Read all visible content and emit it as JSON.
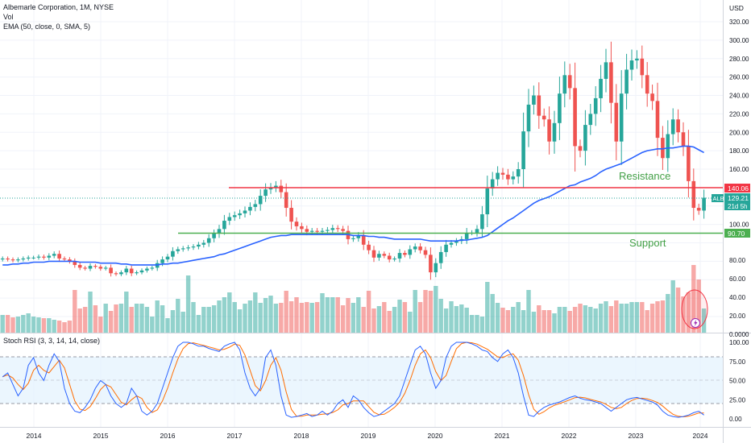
{
  "header": {
    "title": "Albemarle Corporation, 1M, NYSE",
    "vol_label": "Vol",
    "ema_label": "EMA (50, close, 0, SMA, 5)",
    "currency": "USD"
  },
  "price_axis": {
    "ticks": [
      "320.00",
      "300.00",
      "280.00",
      "260.00",
      "240.00",
      "220.00",
      "200.00",
      "180.00",
      "160.00",
      "140.00",
      "120.00",
      "100.00",
      "80.00",
      "60.00",
      "40.00",
      "20.00",
      "0.0000"
    ]
  },
  "badges": {
    "resistance_price": "140.06",
    "symbol": "ALB",
    "last_price": "129.21",
    "countdown": "21d 5h",
    "support_price": "90.70"
  },
  "annotations": {
    "resistance": "Resistance",
    "support": "Support"
  },
  "stoch": {
    "label": "Stoch RSI (3, 3, 14, 14, close)",
    "ticks": [
      "100.00",
      "75.00",
      "50.00",
      "25.00",
      "0.00"
    ]
  },
  "time_axis": {
    "ticks": [
      "2014",
      "2015",
      "2016",
      "2017",
      "2018",
      "2019",
      "2020",
      "2021",
      "2022",
      "2023",
      "2024"
    ]
  },
  "colors": {
    "up": "#26a69a",
    "down": "#ef5350",
    "ema": "#2962ff",
    "resistance_line": "#f23645",
    "support_line": "#4caf50",
    "stoch_k": "#2962ff",
    "stoch_d": "#ff6d00",
    "stoch_band": "#e3f2fd"
  },
  "chart_data": {
    "type": "candlestick",
    "interval": "1M",
    "y_range": [
      0,
      330
    ],
    "resistance_level": 140.06,
    "support_level": 90.7,
    "candles_close": [
      63,
      62,
      61,
      62,
      63,
      64,
      64,
      65,
      64,
      66,
      68,
      63,
      62,
      60,
      56,
      53,
      52,
      55,
      54,
      52,
      53,
      47,
      46,
      48,
      52,
      47,
      48,
      50,
      52,
      53,
      58,
      62,
      65,
      71,
      73,
      74,
      75,
      76,
      78,
      80,
      85,
      90,
      95,
      104,
      108,
      110,
      112,
      115,
      119,
      122,
      131,
      138,
      140,
      142,
      135,
      118,
      103,
      98,
      95,
      92,
      93,
      92,
      93,
      94,
      96,
      95,
      93,
      84,
      85,
      88,
      78,
      72,
      64,
      68,
      66,
      62,
      63,
      69,
      67,
      73,
      76,
      72,
      67,
      48,
      58,
      70,
      78,
      80,
      82,
      84,
      91,
      91,
      95,
      111,
      139,
      149,
      156,
      154,
      149,
      152,
      160,
      201,
      230,
      240,
      218,
      214,
      190,
      210,
      242,
      262,
      248,
      185,
      180,
      208,
      220,
      237,
      258,
      276,
      232,
      190,
      242,
      268,
      278,
      280,
      262,
      242,
      234,
      194,
      172,
      198,
      214,
      200,
      185,
      147,
      118,
      115,
      129
    ],
    "ema_50": [
      56,
      56,
      57,
      57,
      58,
      58,
      59,
      59,
      59,
      60,
      60,
      60,
      60,
      60,
      60,
      59,
      59,
      59,
      59,
      58,
      58,
      58,
      58,
      57,
      57,
      56,
      56,
      56,
      56,
      56,
      56,
      57,
      57,
      58,
      58,
      59,
      60,
      61,
      62,
      63,
      64,
      65,
      67,
      68,
      70,
      72,
      74,
      76,
      78,
      80,
      82,
      84,
      86,
      87,
      88,
      88,
      89,
      89,
      89,
      89,
      89,
      89,
      89,
      89,
      89,
      89,
      89,
      89,
      88,
      88,
      88,
      87,
      87,
      86,
      86,
      85,
      84,
      84,
      84,
      84,
      84,
      84,
      83,
      82,
      82,
      82,
      82,
      82,
      82,
      83,
      83,
      84,
      85,
      86,
      88,
      92,
      96,
      100,
      104,
      107,
      111,
      115,
      119,
      123,
      126,
      128,
      130,
      133,
      136,
      139,
      142,
      143,
      146,
      148,
      150,
      153,
      157,
      160,
      162,
      164,
      166,
      169,
      172,
      175,
      178,
      180,
      181,
      182,
      182,
      183,
      183,
      184,
      185,
      185,
      184,
      181,
      178
    ],
    "volume": [
      22,
      22,
      19,
      20,
      22,
      24,
      20,
      19,
      18,
      18,
      16,
      15,
      13,
      15,
      53,
      30,
      32,
      51,
      34,
      20,
      36,
      27,
      35,
      36,
      51,
      32,
      36,
      36,
      32,
      20,
      40,
      34,
      18,
      28,
      42,
      26,
      71,
      38,
      22,
      32,
      32,
      34,
      40,
      44,
      50,
      38,
      29,
      36,
      40,
      50,
      37,
      43,
      46,
      36,
      37,
      52,
      39,
      44,
      37,
      38,
      37,
      38,
      49,
      44,
      44,
      44,
      34,
      43,
      37,
      44,
      32,
      52,
      30,
      33,
      38,
      27,
      32,
      41,
      38,
      26,
      53,
      38,
      53,
      52,
      58,
      42,
      30,
      39,
      33,
      35,
      31,
      22,
      22,
      20,
      63,
      48,
      37,
      31,
      28,
      32,
      38,
      28,
      53,
      26,
      34,
      28,
      28,
      24,
      32,
      32,
      27,
      32,
      36,
      34,
      32,
      30,
      36,
      39,
      33,
      40,
      36,
      36,
      38,
      38,
      38,
      28,
      36,
      39,
      40,
      48,
      65,
      56,
      45,
      50,
      84,
      66,
      30
    ],
    "stoch_k": [
      55,
      60,
      45,
      30,
      40,
      70,
      80,
      60,
      50,
      70,
      85,
      75,
      40,
      20,
      10,
      8,
      15,
      25,
      40,
      50,
      45,
      30,
      20,
      15,
      20,
      40,
      30,
      10,
      5,
      10,
      20,
      40,
      60,
      80,
      95,
      100,
      100,
      98,
      95,
      95,
      92,
      90,
      88,
      95,
      98,
      100,
      90,
      60,
      40,
      30,
      40,
      80,
      90,
      70,
      30,
      5,
      2,
      3,
      5,
      7,
      3,
      5,
      10,
      5,
      10,
      20,
      25,
      15,
      30,
      25,
      15,
      8,
      3,
      5,
      10,
      15,
      20,
      30,
      50,
      70,
      90,
      95,
      85,
      60,
      40,
      50,
      80,
      95,
      100,
      100,
      100,
      98,
      95,
      90,
      88,
      80,
      75,
      85,
      90,
      80,
      60,
      30,
      5,
      3,
      10,
      15,
      18,
      20,
      22,
      25,
      28,
      30,
      27,
      25,
      24,
      22,
      20,
      15,
      10,
      15,
      20,
      25,
      27,
      28,
      26,
      24,
      22,
      18,
      10,
      5,
      3,
      2,
      3,
      5,
      8,
      10,
      5
    ]
  }
}
